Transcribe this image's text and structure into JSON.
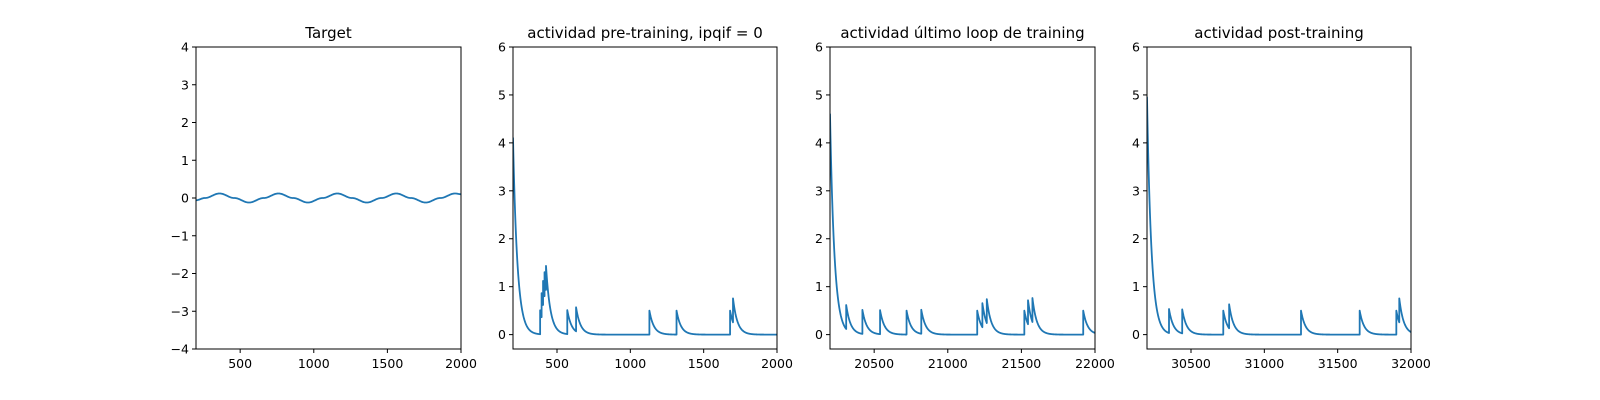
{
  "colors": {
    "series": "#1f77b4",
    "axes": "#000000",
    "background": "#ffffff"
  },
  "chart_data": [
    {
      "type": "line",
      "title": "Target",
      "xlabel": "",
      "ylabel": "",
      "xlim": [
        200,
        2000
      ],
      "ylim": [
        -4,
        4
      ],
      "xticks": [
        500,
        1000,
        1500,
        2000
      ],
      "yticks": [
        -4,
        -3,
        -2,
        -1,
        0,
        1,
        2,
        3,
        4
      ],
      "grid": false,
      "series": [
        {
          "x": [
            200,
            260,
            360,
            460,
            560,
            660,
            760,
            860,
            960,
            1060,
            1160,
            1260,
            1360,
            1460,
            1560,
            1660,
            1760,
            1860,
            1960,
            2000
          ],
          "y": [
            -0.06,
            0.0,
            0.12,
            0.0,
            -0.12,
            0.0,
            0.12,
            0.0,
            -0.12,
            0.0,
            0.12,
            0.0,
            -0.12,
            0.0,
            0.12,
            0.0,
            -0.12,
            0.0,
            0.12,
            0.1
          ]
        }
      ]
    },
    {
      "type": "line",
      "title": "actividad pre-training, ipqif = 0",
      "xlabel": "",
      "ylabel": "",
      "xlim": [
        200,
        2000
      ],
      "ylim": [
        -0.3,
        6
      ],
      "xticks": [
        500,
        1000,
        1500,
        2000
      ],
      "yticks": [
        0,
        1,
        2,
        3,
        4,
        5,
        6
      ],
      "grid": false,
      "decay_time": 30,
      "start_value": 4.1,
      "spike_times": [
        385,
        395,
        405,
        415,
        425,
        570,
        630,
        1130,
        1315,
        1680,
        1700
      ],
      "spike_increment": 0.5
    },
    {
      "type": "line",
      "title": "actividad último loop de training",
      "xlabel": "",
      "ylabel": "",
      "xlim": [
        20200,
        22000
      ],
      "ylim": [
        -0.3,
        6
      ],
      "xticks": [
        20500,
        21000,
        21500,
        22000
      ],
      "yticks": [
        0,
        1,
        2,
        3,
        4,
        5,
        6
      ],
      "grid": false,
      "decay_time": 30,
      "start_value": 4.6,
      "spike_times": [
        20310,
        20420,
        20540,
        20720,
        20820,
        21200,
        21235,
        21265,
        21520,
        21545,
        21575,
        21920
      ],
      "spike_increment": 0.5
    },
    {
      "type": "line",
      "title": "actividad post-training",
      "xlabel": "",
      "ylabel": "",
      "xlim": [
        30200,
        32000
      ],
      "ylim": [
        -0.3,
        6
      ],
      "xticks": [
        30500,
        31000,
        31500,
        32000
      ],
      "yticks": [
        0,
        1,
        2,
        3,
        4,
        5,
        6
      ],
      "grid": false,
      "decay_time": 30,
      "start_value": 4.95,
      "spike_times": [
        30350,
        30440,
        30720,
        30760,
        31250,
        31650,
        31900,
        31920
      ],
      "spike_increment": 0.5
    }
  ]
}
